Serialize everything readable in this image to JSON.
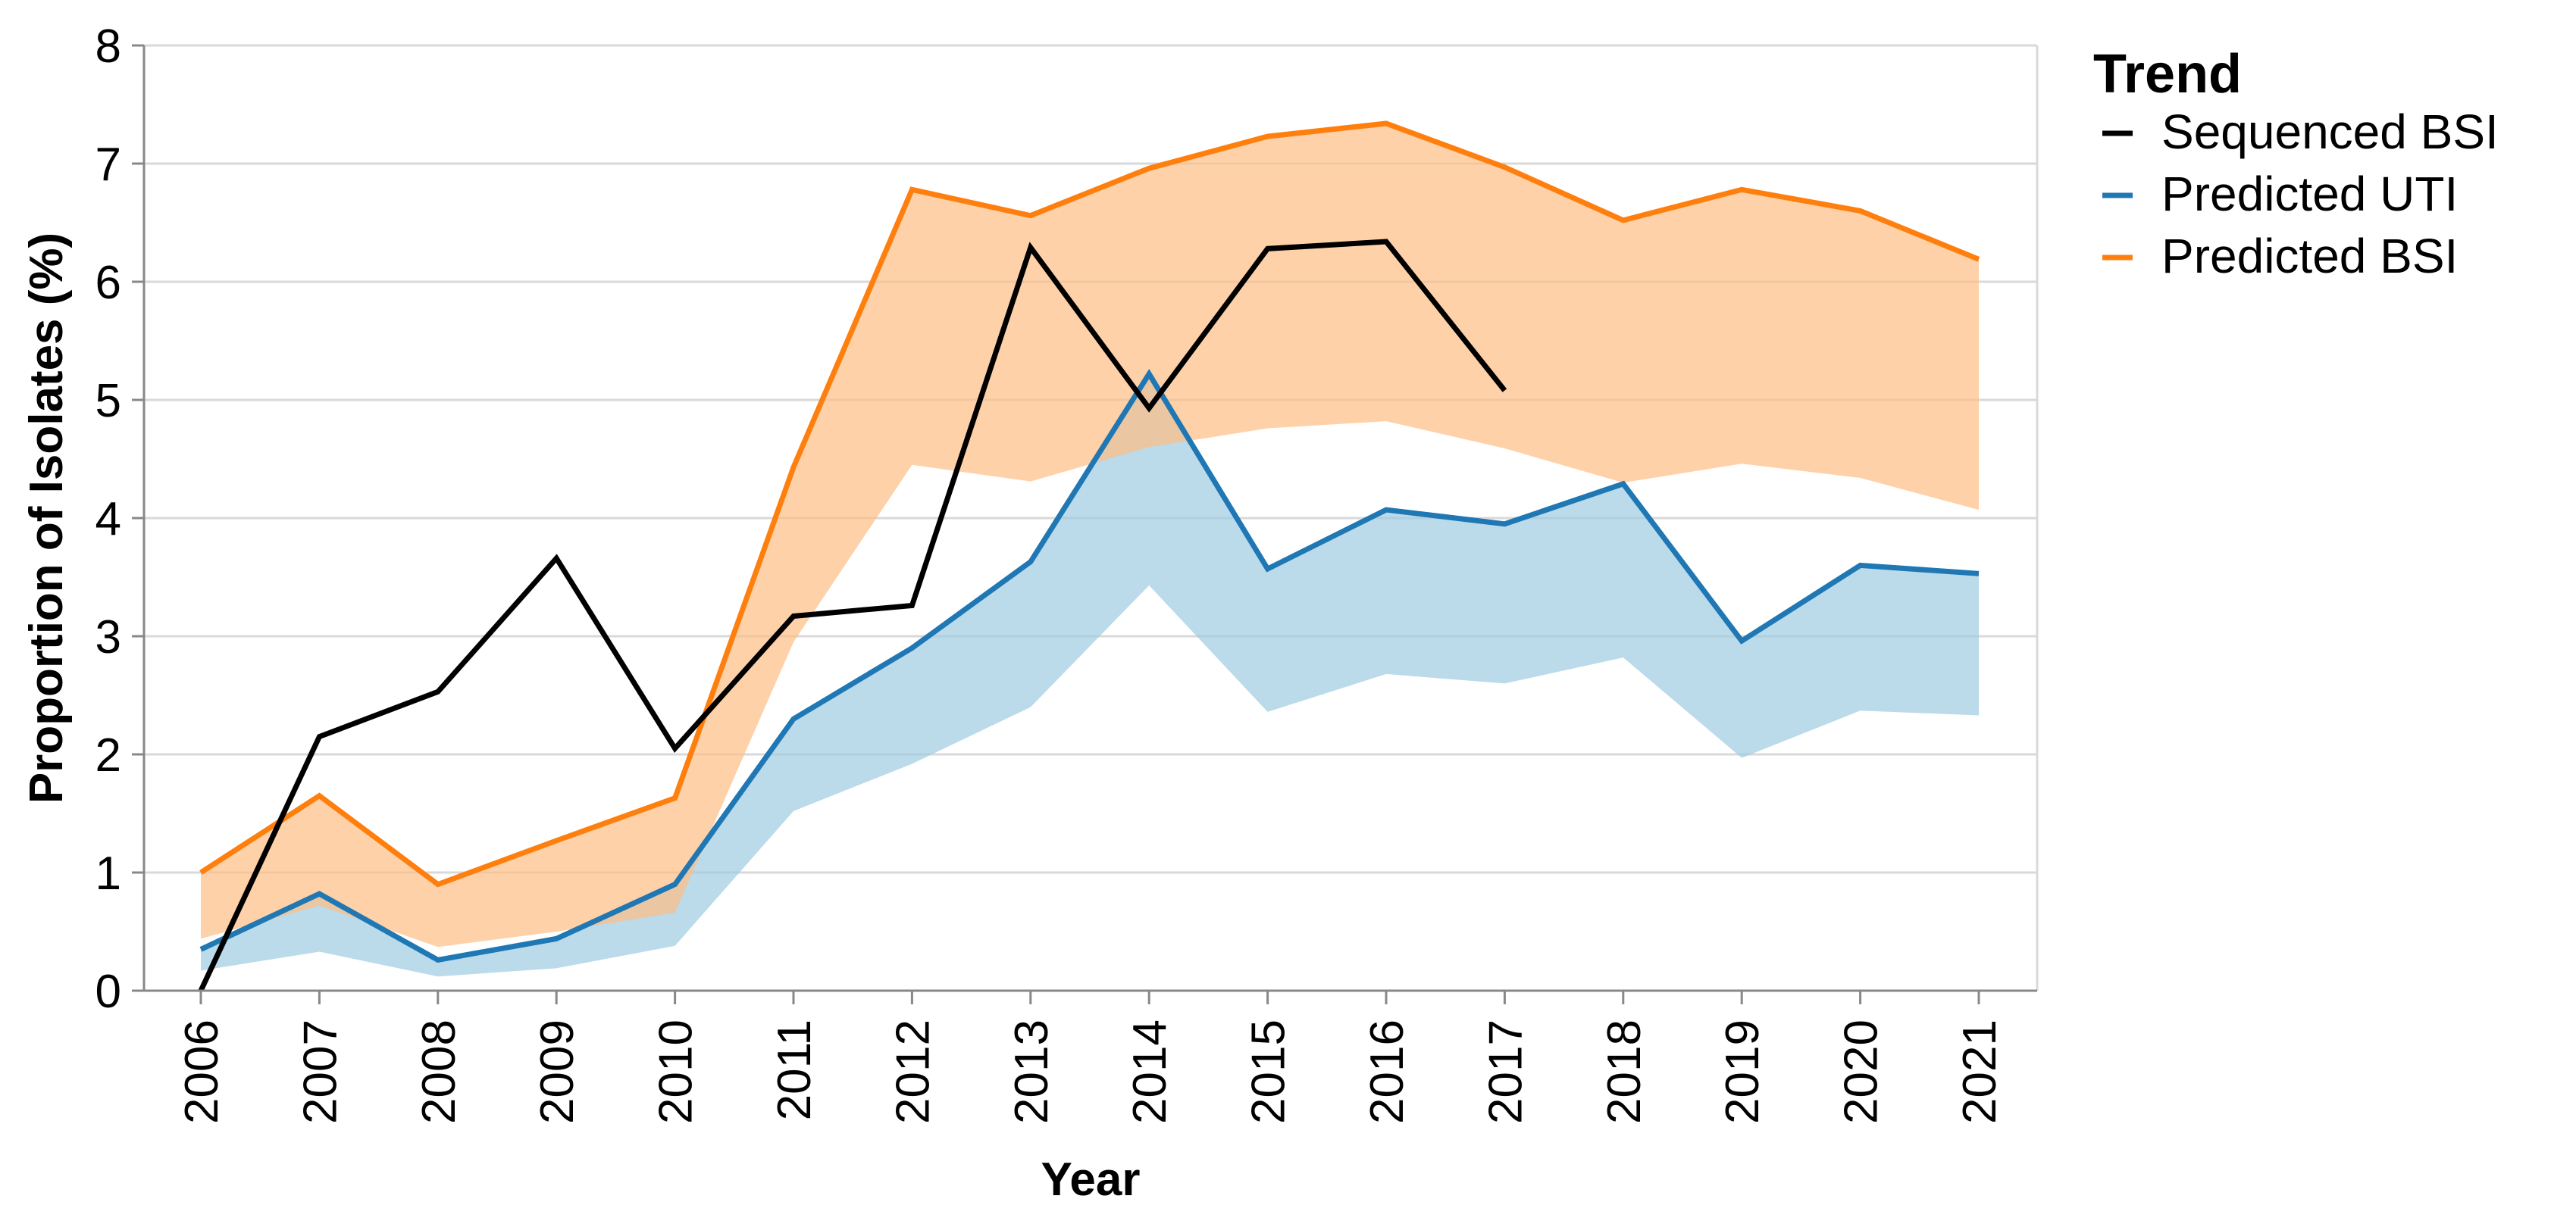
{
  "chart_data": {
    "type": "line",
    "xlabel": "Year",
    "ylabel": "Proportion of Isolates (%)",
    "x": [
      "2006",
      "2007",
      "2008",
      "2009",
      "2010",
      "2011",
      "2012",
      "2013",
      "2014",
      "2015",
      "2016",
      "2017",
      "2018",
      "2019",
      "2020",
      "2021"
    ],
    "ylim": [
      0,
      8
    ],
    "yticks": [
      "0",
      "1",
      "2",
      "3",
      "4",
      "5",
      "6",
      "7",
      "8"
    ],
    "grid": true,
    "legend": {
      "title": "Trend",
      "placement": "right",
      "entries": [
        "Sequenced BSI",
        "Predicted UTI",
        "Predicted BSI"
      ]
    },
    "series": [
      {
        "name": "Sequenced BSI",
        "color": "#000000",
        "values": [
          0.0,
          2.15,
          2.53,
          3.66,
          2.05,
          3.17,
          3.26,
          6.29,
          4.93,
          6.28,
          6.34,
          5.08,
          null,
          null,
          null,
          null
        ]
      },
      {
        "name": "Predicted UTI",
        "color": "#1f77b4",
        "band_color": "#9ecae1",
        "values": [
          0.35,
          0.82,
          0.26,
          0.44,
          0.9,
          2.3,
          2.9,
          3.63,
          5.22,
          3.57,
          4.07,
          3.95,
          4.29,
          2.96,
          3.6,
          3.53
        ],
        "band_low": [
          0.17,
          0.33,
          0.12,
          0.19,
          0.38,
          1.52,
          1.92,
          2.4,
          3.43,
          2.36,
          2.68,
          2.6,
          2.82,
          1.97,
          2.37,
          2.33
        ],
        "band_high": [
          0.35,
          0.82,
          0.26,
          0.44,
          0.9,
          2.3,
          2.9,
          3.63,
          5.22,
          3.57,
          4.07,
          3.95,
          4.29,
          2.96,
          3.6,
          3.53
        ]
      },
      {
        "name": "Predicted BSI",
        "color": "#ff7f0e",
        "band_color": "#fdbe85",
        "values": [
          1.0,
          1.65,
          0.9,
          1.27,
          1.63,
          4.43,
          6.78,
          6.56,
          6.96,
          7.23,
          7.34,
          6.97,
          6.52,
          6.78,
          6.6,
          6.19
        ],
        "band_low": [
          0.44,
          0.72,
          0.37,
          0.5,
          0.66,
          2.95,
          4.45,
          4.31,
          4.6,
          4.76,
          4.82,
          4.59,
          4.3,
          4.46,
          4.34,
          4.07
        ],
        "band_high": [
          1.0,
          1.65,
          0.9,
          1.27,
          1.63,
          4.43,
          6.78,
          6.56,
          6.96,
          7.23,
          7.34,
          6.97,
          6.52,
          6.78,
          6.6,
          6.19
        ]
      }
    ]
  }
}
